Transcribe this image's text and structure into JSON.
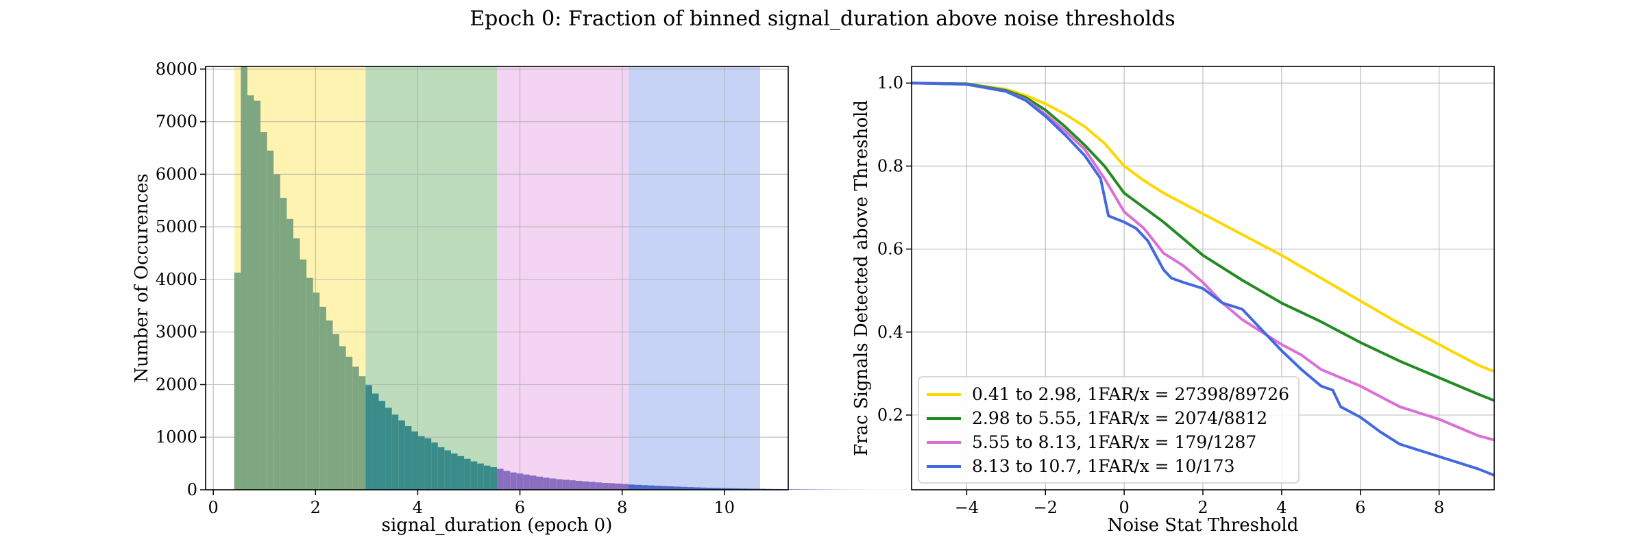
{
  "figure": {
    "title": "Epoch 0: Fraction of binned signal_duration above noise thresholds"
  },
  "chart_data": [
    {
      "type": "bar",
      "panel": "left",
      "xlabel": "signal_duration (epoch 0)",
      "ylabel": "Number of Occurences",
      "xlim": [
        -0.15,
        11.25
      ],
      "ylim": [
        0,
        8050
      ],
      "xticks": [
        0,
        2,
        4,
        6,
        8,
        10
      ],
      "yticks": [
        0,
        1000,
        2000,
        3000,
        4000,
        5000,
        6000,
        7000,
        8000
      ],
      "grid": true,
      "bin_width": 0.1285,
      "bins": {
        "start": 0.41,
        "counts": [
          4130,
          8050,
          7500,
          7400,
          6800,
          6450,
          6000,
          5550,
          5150,
          4780,
          4380,
          4030,
          3750,
          3480,
          3220,
          2960,
          2730,
          2530,
          2340,
          2160,
          1990,
          1830,
          1690,
          1560,
          1430,
          1320,
          1210,
          1110,
          1020,
          980,
          900,
          810,
          750,
          690,
          640,
          590,
          540,
          500,
          460,
          430,
          400,
          360,
          330,
          310,
          290,
          270,
          250,
          230,
          215,
          200,
          190,
          180,
          170,
          160,
          150,
          140,
          130,
          125,
          118,
          110,
          100,
          94,
          88,
          82,
          76,
          70,
          65,
          60,
          55,
          50,
          46,
          42,
          39,
          36,
          33,
          30,
          27,
          24,
          22,
          20,
          18,
          16,
          14,
          12,
          10,
          9,
          8,
          7,
          6,
          5,
          4,
          3,
          3,
          2,
          2,
          2,
          1,
          1,
          1,
          1,
          1,
          1,
          1,
          1,
          1,
          1,
          1,
          1,
          1,
          1,
          1,
          1,
          1,
          1,
          1,
          1,
          1,
          1,
          1,
          1,
          1,
          1,
          1,
          1,
          1,
          1,
          1,
          1,
          1
        ]
      },
      "bands": [
        {
          "from": 0.41,
          "to": 2.98,
          "color": "#ffd700",
          "bar_color": "#7ea680"
        },
        {
          "from": 2.98,
          "to": 5.55,
          "color": "#228b22",
          "bar_color": "#3a8c8a"
        },
        {
          "from": 5.55,
          "to": 8.13,
          "color": "#da70d6",
          "bar_color": "#8a6fc0"
        },
        {
          "from": 8.13,
          "to": 10.7,
          "color": "#4169e1",
          "bar_color": "#4a66c8"
        }
      ]
    },
    {
      "type": "line",
      "panel": "right",
      "xlabel": "Noise Stat Threshold",
      "ylabel": "Frac Signals Detected above Threshold",
      "xlim": [
        -5.4,
        9.4
      ],
      "ylim": [
        0.02,
        1.04
      ],
      "xticks": [
        -4,
        -2,
        0,
        2,
        4,
        6,
        8
      ],
      "yticks": [
        0.2,
        0.4,
        0.6,
        0.8,
        1.0
      ],
      "grid": true,
      "legend": "lower-left",
      "series": [
        {
          "name": "0.41 to 2.98, 1FAR/x = 27398/89726",
          "color": "#ffd700",
          "x": [
            -5.4,
            -4,
            -3,
            -2.5,
            -2,
            -1.5,
            -1,
            -0.5,
            0,
            0.5,
            1,
            2,
            3,
            4,
            5,
            6,
            7,
            8,
            9,
            9.4
          ],
          "y": [
            1.0,
            0.998,
            0.985,
            0.97,
            0.95,
            0.925,
            0.895,
            0.855,
            0.8,
            0.765,
            0.735,
            0.685,
            0.635,
            0.585,
            0.53,
            0.475,
            0.42,
            0.37,
            0.32,
            0.305
          ]
        },
        {
          "name": "2.98 to 5.55, 1FAR/x = 2074/8812",
          "color": "#228b22",
          "x": [
            -5.4,
            -4,
            -3,
            -2.5,
            -2,
            -1.5,
            -1,
            -0.5,
            0,
            0.5,
            1,
            2,
            3,
            4,
            5,
            6,
            7,
            8,
            9,
            9.4
          ],
          "y": [
            1.0,
            0.998,
            0.982,
            0.965,
            0.935,
            0.895,
            0.85,
            0.8,
            0.735,
            0.7,
            0.665,
            0.585,
            0.525,
            0.47,
            0.425,
            0.375,
            0.33,
            0.29,
            0.25,
            0.235
          ]
        },
        {
          "name": "5.55 to 8.13, 1FAR/x = 179/1287",
          "color": "#da70d6",
          "x": [
            -5.4,
            -4,
            -3,
            -2.5,
            -2,
            -1.5,
            -1,
            -0.5,
            0,
            0.5,
            1,
            1.5,
            2,
            2.5,
            3,
            3.5,
            4,
            4.5,
            5,
            6,
            7,
            8,
            9,
            9.4
          ],
          "y": [
            1.0,
            0.997,
            0.98,
            0.96,
            0.925,
            0.885,
            0.84,
            0.77,
            0.69,
            0.65,
            0.59,
            0.56,
            0.52,
            0.47,
            0.43,
            0.4,
            0.37,
            0.345,
            0.31,
            0.27,
            0.22,
            0.19,
            0.15,
            0.14
          ]
        },
        {
          "name": "8.13 to 10.7, 1FAR/x = 10/173",
          "color": "#4169e1",
          "x": [
            -5.4,
            -4,
            -3,
            -2.5,
            -2,
            -1.5,
            -1,
            -0.6,
            -0.4,
            0,
            0.3,
            0.6,
            1,
            1.2,
            1.5,
            2,
            2.5,
            3,
            3.5,
            4,
            4.5,
            5,
            5.3,
            5.5,
            6,
            6.5,
            7,
            8,
            9,
            9.4
          ],
          "y": [
            1.0,
            0.997,
            0.98,
            0.958,
            0.92,
            0.875,
            0.825,
            0.77,
            0.68,
            0.665,
            0.65,
            0.62,
            0.55,
            0.53,
            0.52,
            0.505,
            0.47,
            0.455,
            0.405,
            0.355,
            0.31,
            0.27,
            0.26,
            0.22,
            0.195,
            0.16,
            0.13,
            0.1,
            0.07,
            0.055
          ]
        }
      ]
    }
  ]
}
